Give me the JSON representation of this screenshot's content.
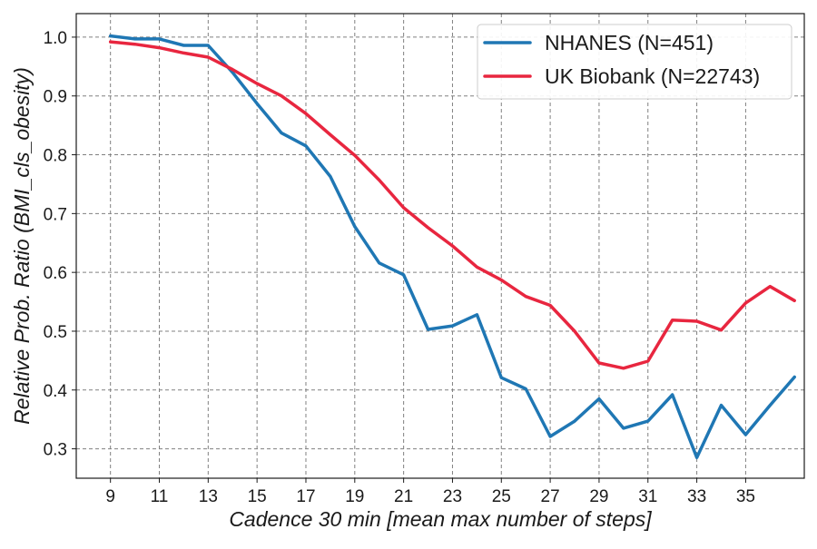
{
  "chart_data": {
    "type": "line",
    "xlabel": "Cadence 30 min [mean max number of steps]",
    "ylabel": "Relative Prob. Ratio (BMI_cls_obesity)",
    "xlim": [
      7.6,
      37.4
    ],
    "ylim": [
      0.25,
      1.04
    ],
    "x_ticks": [
      "9",
      "11",
      "13",
      "15",
      "17",
      "19",
      "21",
      "23",
      "25",
      "27",
      "29",
      "31",
      "33",
      "35"
    ],
    "y_ticks": [
      "0.3",
      "0.4",
      "0.5",
      "0.6",
      "0.7",
      "0.8",
      "0.9",
      "1.0"
    ],
    "grid": true,
    "legend_position": "top-right",
    "x": [
      9,
      10,
      11,
      12,
      13,
      14,
      15,
      16,
      17,
      18,
      19,
      20,
      21,
      22,
      23,
      24,
      25,
      26,
      27,
      28,
      29,
      30,
      31,
      32,
      33,
      34,
      35,
      36,
      37
    ],
    "series": [
      {
        "name": "NHANES (N=451)",
        "color": "#1f77b4",
        "values": [
          1.002,
          0.997,
          0.997,
          0.986,
          0.986,
          0.94,
          0.887,
          0.837,
          0.815,
          0.763,
          0.678,
          0.616,
          0.596,
          0.503,
          0.509,
          0.528,
          0.421,
          0.402,
          0.321,
          0.347,
          0.385,
          0.335,
          0.347,
          0.392,
          0.285,
          0.374,
          0.324,
          0.374,
          0.422
        ]
      },
      {
        "name": "UK Biobank (N=22743)",
        "color": "#e8263f",
        "values": [
          0.992,
          0.988,
          0.982,
          0.973,
          0.966,
          0.945,
          0.921,
          0.9,
          0.87,
          0.834,
          0.799,
          0.757,
          0.71,
          0.676,
          0.645,
          0.609,
          0.587,
          0.559,
          0.544,
          0.5,
          0.446,
          0.437,
          0.449,
          0.519,
          0.517,
          0.502,
          0.548,
          0.576,
          0.552
        ]
      }
    ]
  }
}
